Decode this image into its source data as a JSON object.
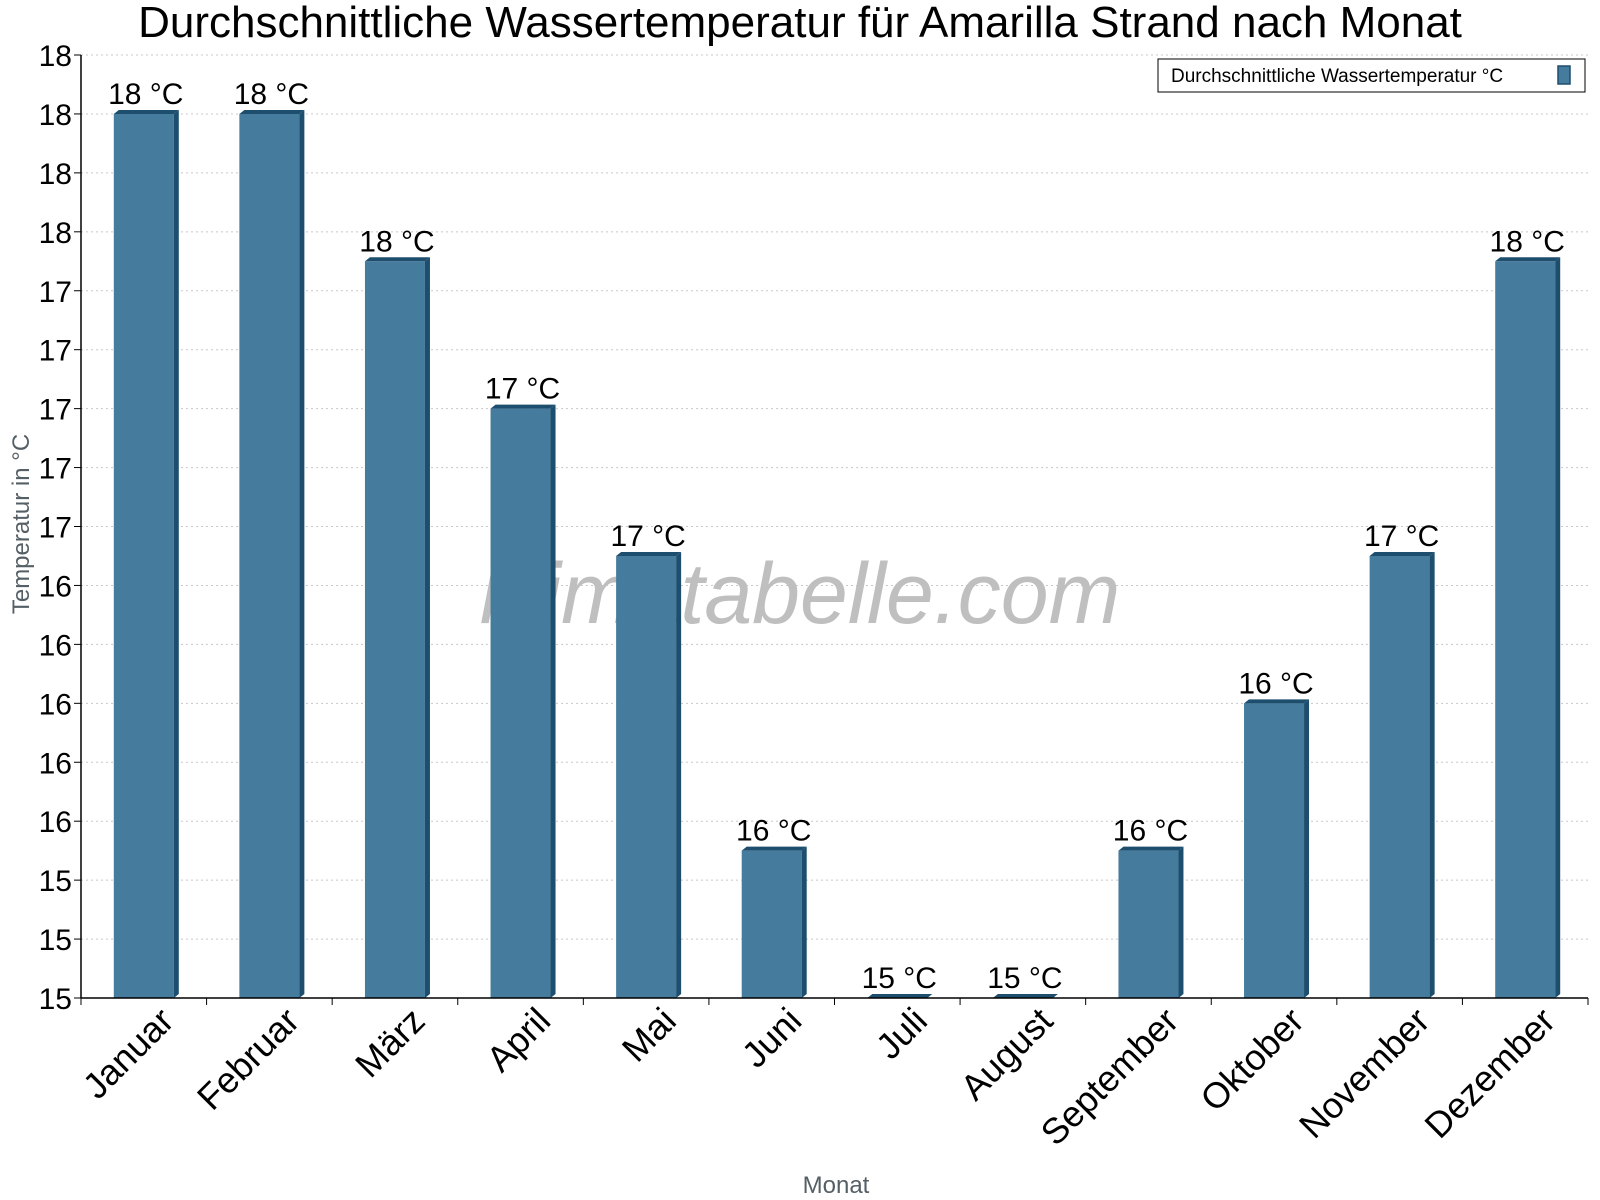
{
  "chart_data": {
    "type": "bar",
    "title": "Durchschnittliche Wassertemperatur für Amarilla Strand nach Monat",
    "xlabel": "Monat",
    "ylabel": "Temperatur in °C",
    "categories": [
      "Januar",
      "Februar",
      "März",
      "April",
      "Mai",
      "Juni",
      "Juli",
      "August",
      "September",
      "Oktober",
      "November",
      "Dezember"
    ],
    "series": [
      {
        "name": "Durchschnittliche Wassertemperatur °C",
        "values": [
          18.0,
          18.0,
          17.5,
          17.0,
          16.5,
          15.5,
          15.0,
          15.0,
          15.5,
          16.0,
          16.5,
          17.5
        ],
        "data_labels": [
          "18 °C",
          "18 °C",
          "18 °C",
          "17 °C",
          "17 °C",
          "16 °C",
          "15 °C",
          "15 °C",
          "16 °C",
          "16 °C",
          "17 °C",
          "18 °C"
        ],
        "color": "#457b9d",
        "edge_color": "#1d4e6e"
      }
    ],
    "ylim": [
      15.0,
      18.2
    ],
    "yticks": [
      15.0,
      15.2,
      15.4,
      15.6,
      15.8,
      16.0,
      16.2,
      16.4,
      16.6,
      16.8,
      17.0,
      17.2,
      17.4,
      17.6,
      17.8,
      18.0,
      18.2
    ],
    "ytick_labels": [
      "15",
      "15",
      "15",
      "16",
      "16",
      "16",
      "16",
      "16",
      "17",
      "17",
      "17",
      "17",
      "17",
      "18",
      "18",
      "18",
      "18"
    ],
    "grid": "horizontal dotted",
    "legend_position": "top-right",
    "watermark": "klimatabelle.com"
  }
}
